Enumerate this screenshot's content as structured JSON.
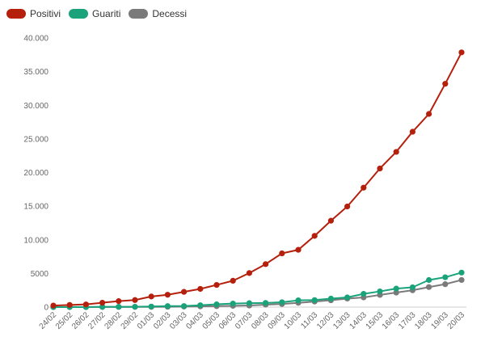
{
  "chart_data": {
    "type": "line",
    "title": "",
    "xlabel": "",
    "ylabel": "",
    "categories": [
      "24/02",
      "25/02",
      "26/02",
      "27/02",
      "28/02",
      "29/02",
      "01/03",
      "02/03",
      "03/03",
      "04/03",
      "05/03",
      "06/03",
      "07/03",
      "08/03",
      "09/03",
      "10/03",
      "11/03",
      "12/03",
      "13/03",
      "14/03",
      "15/03",
      "16/03",
      "17/03",
      "18/03",
      "19/03",
      "20/03"
    ],
    "ylim": [
      0,
      40000
    ],
    "yticks": [
      0,
      5000,
      10000,
      15000,
      20000,
      25000,
      30000,
      35000,
      40000
    ],
    "ytick_labels": [
      "0",
      "5000",
      "10.000",
      "15.000",
      "20.000",
      "25.000",
      "30.000",
      "35.000",
      "40.000"
    ],
    "grid": false,
    "legend_position": "top-left",
    "series": [
      {
        "name": "Positivi",
        "color": "#b5200d",
        "values": [
          229,
          322,
          400,
          650,
          888,
          1049,
          1577,
          1835,
          2263,
          2706,
          3296,
          3916,
          5061,
          6387,
          7985,
          8514,
          10590,
          12839,
          14955,
          17750,
          20603,
          23073,
          26062,
          28710,
          33190,
          37860
        ]
      },
      {
        "name": "Guariti",
        "color": "#1aa37a",
        "values": [
          1,
          1,
          3,
          45,
          46,
          50,
          83,
          149,
          160,
          276,
          414,
          523,
          589,
          622,
          724,
          1004,
          1045,
          1258,
          1439,
          1966,
          2335,
          2749,
          2941,
          4025,
          4440,
          5129
        ]
      },
      {
        "name": "Decessi",
        "color": "#7a7a7a",
        "values": [
          7,
          10,
          12,
          17,
          21,
          29,
          34,
          52,
          79,
          107,
          148,
          197,
          233,
          366,
          463,
          631,
          827,
          1016,
          1266,
          1441,
          1809,
          2158,
          2503,
          2978,
          3405,
          4032
        ]
      }
    ]
  }
}
